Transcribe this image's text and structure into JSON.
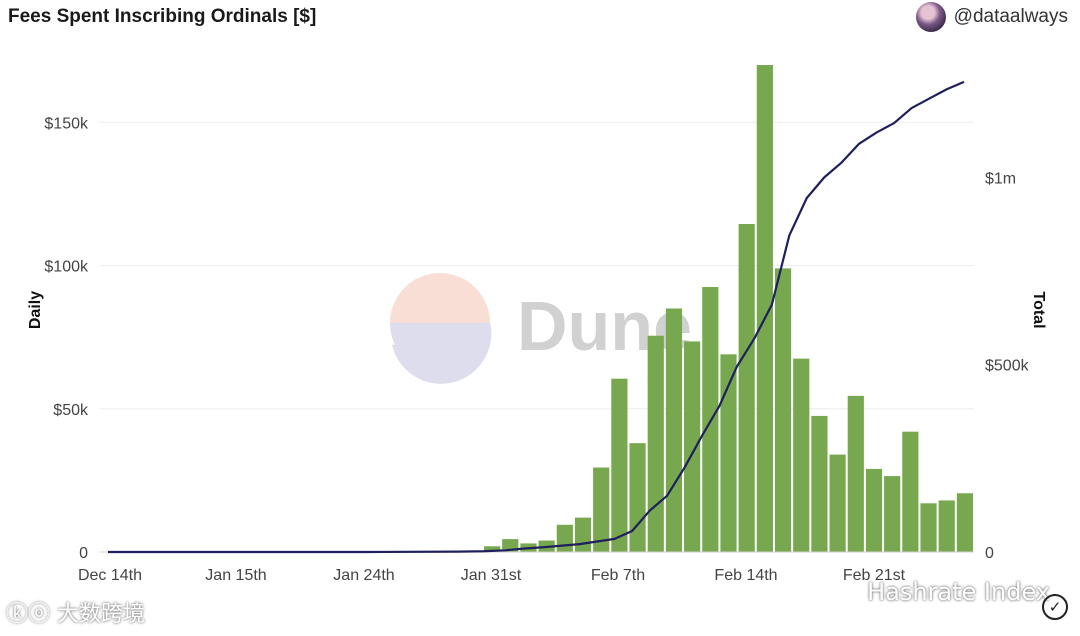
{
  "header": {
    "title": "Fees Spent Inscribing Ordinals [$]",
    "author": "@dataalways"
  },
  "watermarks": {
    "dune": "Dune",
    "bottom_left": "ⓚⓞ 大数跨境",
    "bottom_right": "Hashrate Index",
    "check_icon": "✓"
  },
  "chart_data": {
    "type": "bar+line",
    "title": "Fees Spent Inscribing Ordinals [$]",
    "ylabel_left": "Daily",
    "ylabel_right": "Total",
    "x_tick_labels": [
      "Dec 14th",
      "Jan 15th",
      "Jan 24th",
      "Jan 31st",
      "Feb 7th",
      "Feb 14th",
      "Feb 21st"
    ],
    "left_axis": {
      "min": 0,
      "max": 170000,
      "ticks": [
        0,
        50000,
        100000,
        150000
      ],
      "tick_labels": [
        "0",
        "$50k",
        "$100k",
        "$150k"
      ]
    },
    "right_axis": {
      "min": 0,
      "max": 1300000,
      "ticks": [
        0,
        500000,
        1000000
      ],
      "tick_labels": [
        "0",
        "$500k",
        "$1m"
      ]
    },
    "series": [
      {
        "name": "Daily",
        "kind": "bar",
        "color": "#77a84f",
        "values": [
          2000,
          4500,
          3000,
          4000,
          9500,
          12000,
          29500,
          60500,
          38000,
          75500,
          85000,
          73500,
          92500,
          69000,
          114500,
          170000,
          99000,
          67500,
          47500,
          34000,
          54500,
          29000,
          26500,
          42000,
          17000,
          18000,
          20500
        ]
      },
      {
        "name": "Total",
        "kind": "line",
        "color": "#1e1f5c",
        "points": [
          [
            0,
            0
          ],
          [
            0.1,
            0
          ],
          [
            0.2,
            0
          ],
          [
            0.3,
            0
          ],
          [
            0.4,
            1000
          ],
          [
            0.43,
            2000
          ],
          [
            0.455,
            4500
          ],
          [
            0.475,
            9000
          ],
          [
            0.5,
            13000
          ],
          [
            0.52,
            17000
          ],
          [
            0.54,
            21000
          ],
          [
            0.56,
            28000
          ],
          [
            0.58,
            35000
          ],
          [
            0.6,
            56000
          ],
          [
            0.62,
            110000
          ],
          [
            0.64,
            150000
          ],
          [
            0.66,
            225000
          ],
          [
            0.68,
            310000
          ],
          [
            0.7,
            390000
          ],
          [
            0.72,
            495000
          ],
          [
            0.74,
            570000
          ],
          [
            0.76,
            660000
          ],
          [
            0.78,
            845000
          ],
          [
            0.8,
            945000
          ],
          [
            0.82,
            1000000
          ],
          [
            0.84,
            1040000
          ],
          [
            0.86,
            1090000
          ],
          [
            0.88,
            1120000
          ],
          [
            0.9,
            1145000
          ],
          [
            0.92,
            1185000
          ],
          [
            0.94,
            1210000
          ],
          [
            0.96,
            1235000
          ],
          [
            0.98,
            1255000
          ]
        ]
      }
    ],
    "legend": "none",
    "grid": true
  }
}
